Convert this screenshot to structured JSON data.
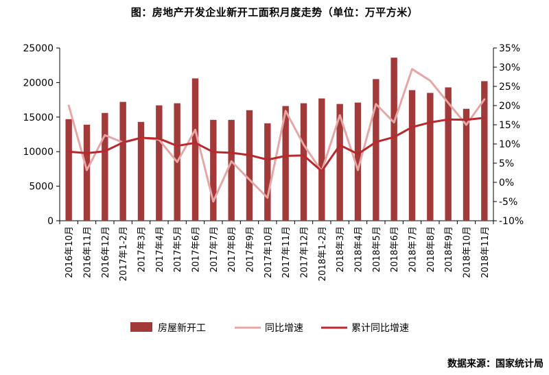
{
  "chart_data": {
    "type": "bar",
    "title": "图：房地产开发企业新开工面积月度走势（单位：万平方米）",
    "categories": [
      "2016年10月",
      "2016年11月",
      "2016年12月",
      "2017年1-2月",
      "2017年3月",
      "2017年4月",
      "2017年5月",
      "2017年6月",
      "2017年7月",
      "2017年8月",
      "2017年9月",
      "2017年10月",
      "2017年11月",
      "2017年12月",
      "2018年1-2月",
      "2018年3月",
      "2018年4月",
      "2018年5月",
      "2018年6月",
      "2018年7月",
      "2018年8月",
      "2018年9月",
      "2018年10月",
      "2018年11月"
    ],
    "ylim": [
      0,
      25000
    ],
    "y2lim": [
      -10,
      35
    ],
    "yticks": [
      "0",
      "5000",
      "10000",
      "15000",
      "20000",
      "25000"
    ],
    "y2ticks": [
      "-10%",
      "-5%",
      "0%",
      "5%",
      "10%",
      "15%",
      "20%",
      "25%",
      "30%",
      "35%"
    ],
    "series": [
      {
        "name": "房屋新开工",
        "type": "bar",
        "axis": "left",
        "color": "#a33a3a",
        "values": [
          14700,
          13900,
          15600,
          17200,
          14300,
          16700,
          17000,
          20600,
          14600,
          14600,
          16000,
          14100,
          16600,
          17000,
          17700,
          16900,
          17100,
          20500,
          23600,
          18900,
          18500,
          19300,
          16200,
          20200
        ]
      },
      {
        "name": "同比增速",
        "type": "line",
        "axis": "right",
        "color": "#e6a6a6",
        "values": [
          20,
          3.2,
          12.3,
          10.4,
          11.6,
          11.1,
          5.3,
          13.7,
          -5,
          5.5,
          0.7,
          -4,
          18.6,
          9.8,
          2.9,
          17.5,
          3.2,
          20.4,
          15.6,
          29.5,
          26.5,
          20.7,
          15.0,
          21.6
        ]
      },
      {
        "name": "累计同比增速",
        "type": "line",
        "axis": "right",
        "color": "#b8282c",
        "values": [
          8.0,
          7.6,
          8.1,
          10.4,
          11.6,
          11.4,
          9.5,
          10.3,
          7.9,
          7.7,
          7.1,
          5.9,
          6.9,
          7.0,
          2.9,
          9.7,
          7.4,
          10.5,
          11.8,
          14.4,
          15.6,
          16.4,
          16.3,
          16.8
        ]
      }
    ],
    "source": "数据来源：国家统计局"
  }
}
